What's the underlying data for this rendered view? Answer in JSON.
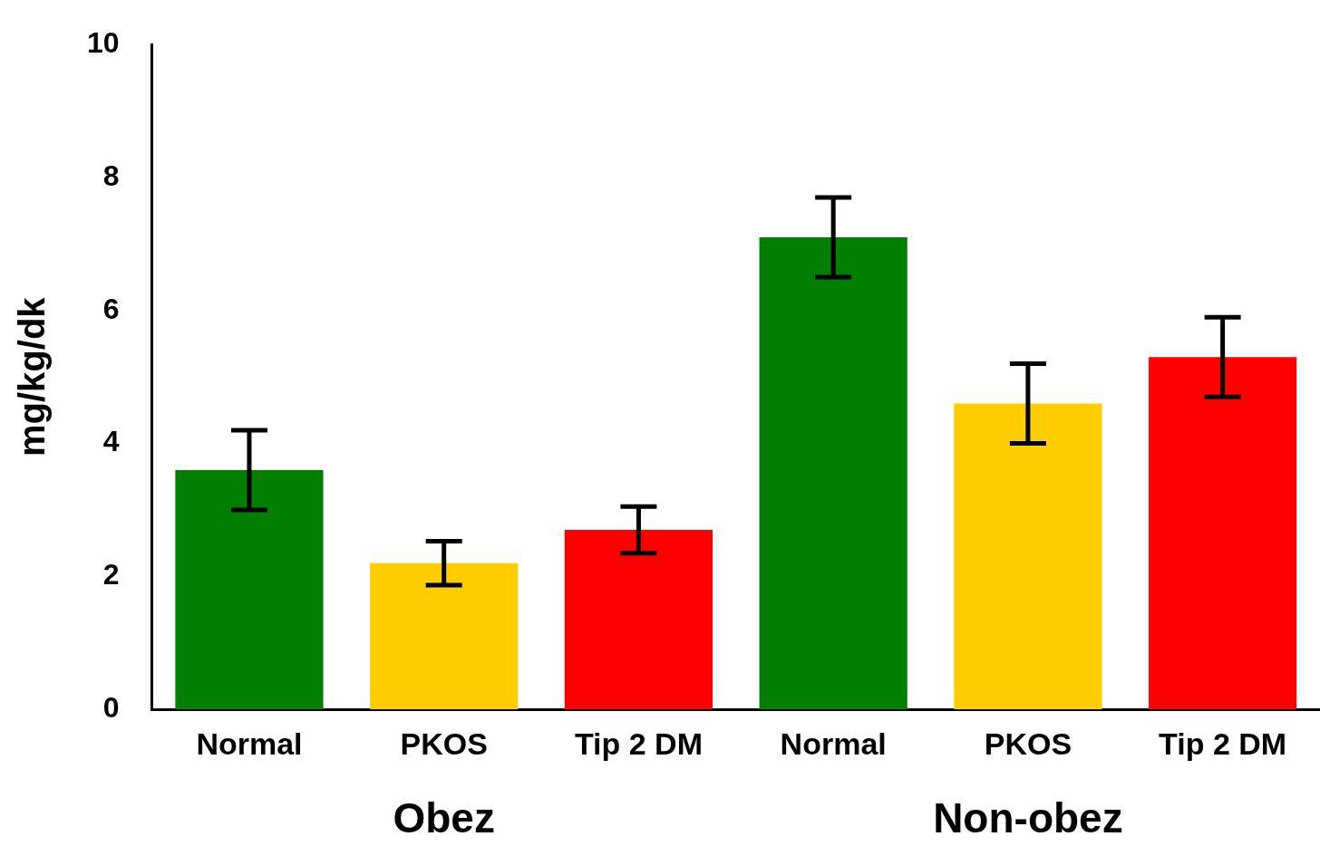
{
  "chart_data": {
    "type": "bar",
    "ylabel": "mg/kg/dk",
    "categories": [
      "Normal",
      "PKOS",
      "Tip 2 DM",
      "Normal",
      "PKOS",
      "Tip 2 DM"
    ],
    "values": [
      3.6,
      2.2,
      2.7,
      7.1,
      4.6,
      5.3
    ],
    "errors": [
      0.6,
      0.33,
      0.35,
      0.6,
      0.6,
      0.6
    ],
    "colors": [
      "#007f00",
      "#ffcc00",
      "#ff0000",
      "#007f00",
      "#ffcc00",
      "#ff0000"
    ],
    "ylim": [
      0,
      10
    ],
    "yticks": [
      0,
      2,
      4,
      6,
      8,
      10
    ],
    "annotations": [
      "Obez",
      "Non-obez"
    ]
  }
}
